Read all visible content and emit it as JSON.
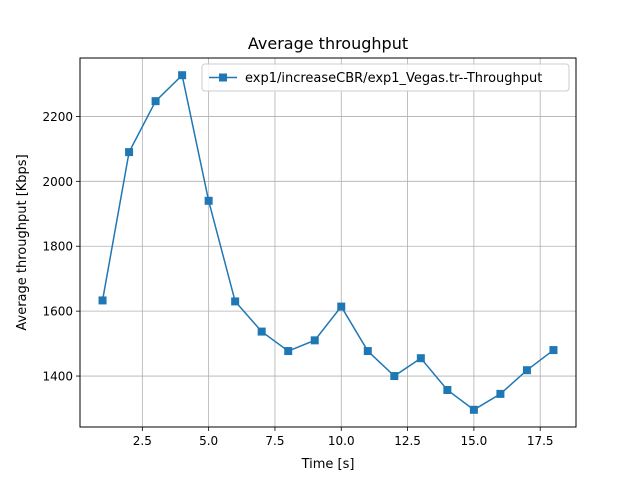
{
  "chart_data": {
    "type": "line",
    "title": "Average throughput",
    "xlabel": "Time [s]",
    "ylabel": "Average throughput [Kbps]",
    "xlim": [
      0.15,
      18.85
    ],
    "ylim": [
      1243,
      2380
    ],
    "x_ticks": [
      2.5,
      5.0,
      7.5,
      10.0,
      12.5,
      15.0,
      17.5
    ],
    "x_tick_labels": [
      "2.5",
      "5.0",
      "7.5",
      "10.0",
      "12.5",
      "15.0",
      "17.5"
    ],
    "y_ticks": [
      1400,
      1600,
      1800,
      2000,
      2200
    ],
    "y_tick_labels": [
      "1400",
      "1600",
      "1800",
      "2000",
      "2200"
    ],
    "grid": true,
    "legend_position": "top-right",
    "series": [
      {
        "name": "exp1/increaseCBR/exp1_Vegas.tr--Throughput",
        "color": "#1f77b4",
        "marker": "square",
        "x": [
          1,
          2,
          3,
          4,
          5,
          6,
          7,
          8,
          9,
          10,
          11,
          12,
          13,
          14,
          15,
          16,
          17,
          18
        ],
        "y": [
          1633,
          2090,
          2247,
          2327,
          1940,
          1630,
          1537,
          1477,
          1510,
          1614,
          1477,
          1400,
          1455,
          1357,
          1296,
          1345,
          1418,
          1480
        ]
      }
    ]
  }
}
